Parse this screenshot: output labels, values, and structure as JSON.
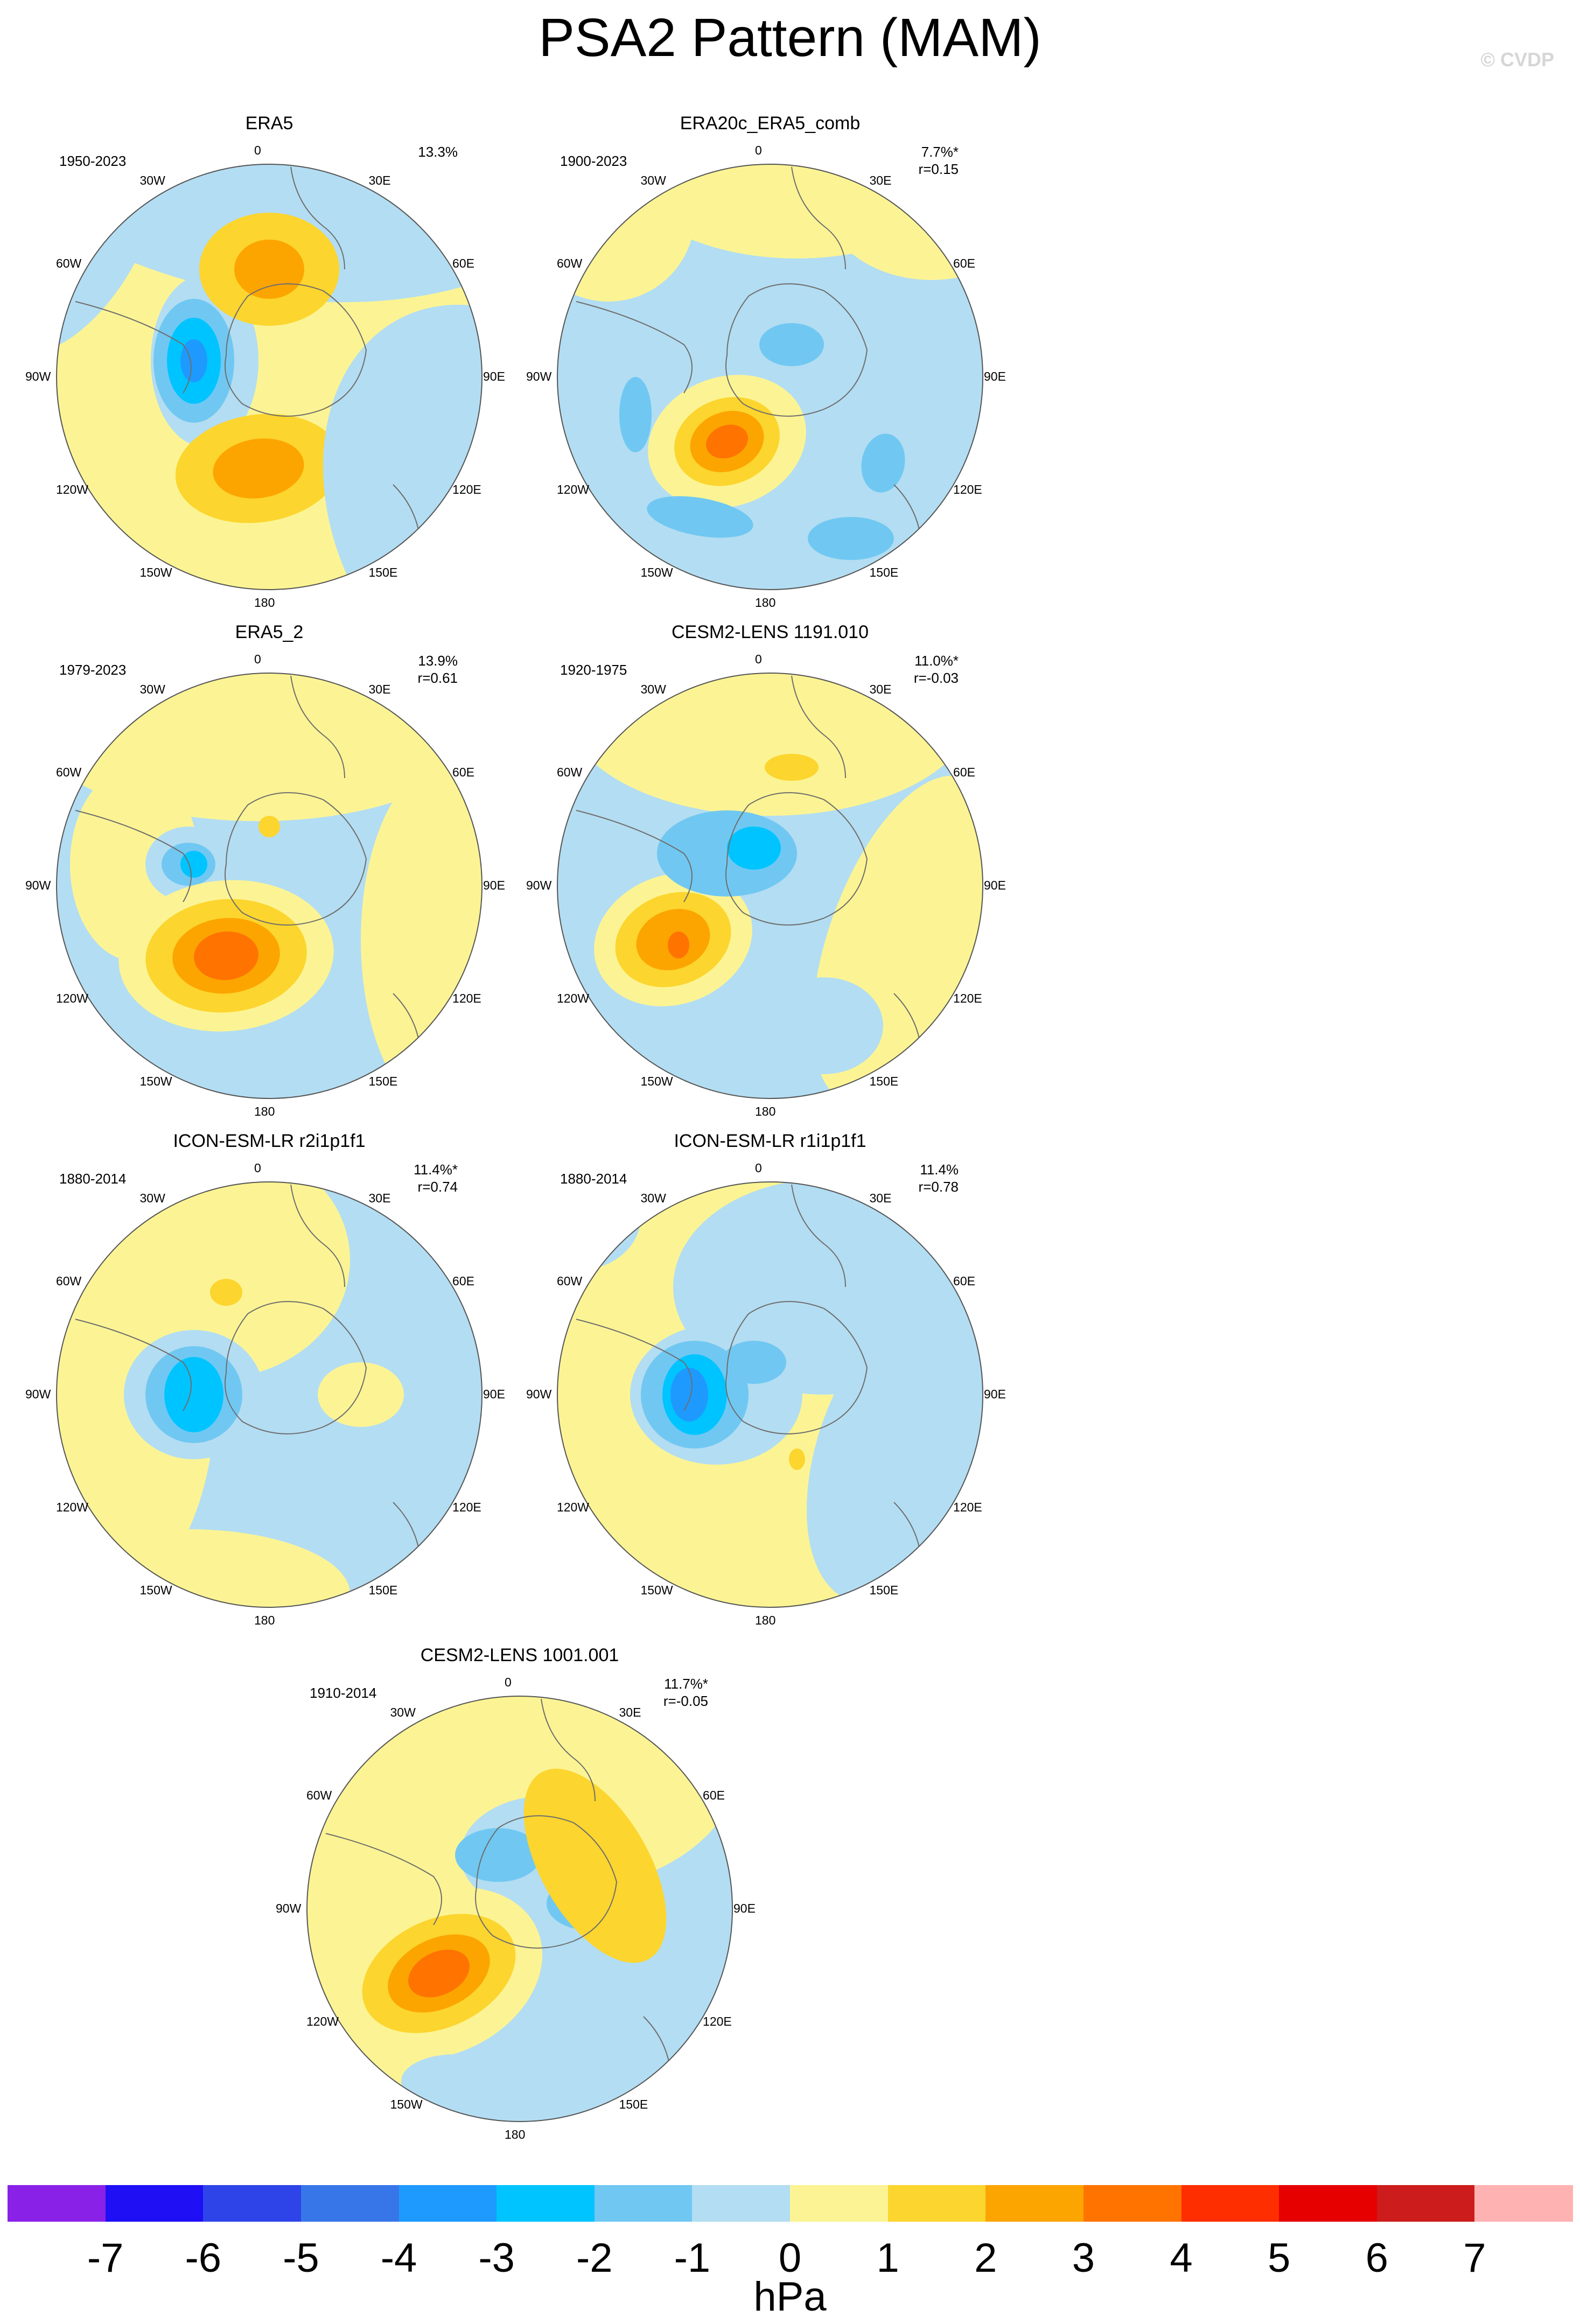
{
  "title": "PSA2 Pattern (MAM)",
  "copyright": "© CVDP",
  "map_type": "south-polar stereographic sea-level-pressure pattern maps",
  "lon_labels": {
    "top": "0",
    "tr": "30E",
    "r1": "60E",
    "r": "90E",
    "r2": "120E",
    "br": "150E",
    "bottom": "180",
    "bl": "150W",
    "l2": "120W",
    "l": "90W",
    "l1": "60W",
    "tl": "30W"
  },
  "panels": [
    {
      "title": "ERA5",
      "period": "1950-2023",
      "pct": "13.3%",
      "r": ""
    },
    {
      "title": "ERA20c_ERA5_comb",
      "period": "1900-2023",
      "pct": "7.7%*",
      "r": "r=0.15"
    },
    {
      "title": "ERA5_2",
      "period": "1979-2023",
      "pct": "13.9%",
      "r": "r=0.61"
    },
    {
      "title": "CESM2-LENS 1191.010",
      "period": "1920-1975",
      "pct": "11.0%*",
      "r": "r=-0.03"
    },
    {
      "title": "ICON-ESM-LR r2i1p1f1",
      "period": "1880-2014",
      "pct": "11.4%*",
      "r": "r=0.74"
    },
    {
      "title": "ICON-ESM-LR r1i1p1f1",
      "period": "1880-2014",
      "pct": "11.4%",
      "r": "r=0.78"
    },
    {
      "title": "CESM2-LENS 1001.001",
      "period": "1910-2014",
      "pct": "11.7%*",
      "r": "r=-0.05"
    }
  ],
  "colorbar": {
    "unit": "hPa",
    "ticks": [
      "-7",
      "-6",
      "-5",
      "-4",
      "-3",
      "-2",
      "-1",
      "0",
      "1",
      "2",
      "3",
      "4",
      "5",
      "6",
      "7"
    ],
    "colors": [
      "#8a21e6",
      "#1f0ff5",
      "#2e44e8",
      "#3776e8",
      "#1e9aff",
      "#00c4ff",
      "#70c8f2",
      "#b3ddf2",
      "#fcf494",
      "#fcd52e",
      "#fca500",
      "#ff7300",
      "#ff2e00",
      "#e60000",
      "#cc1c1c",
      "#ffb2b2"
    ]
  }
}
